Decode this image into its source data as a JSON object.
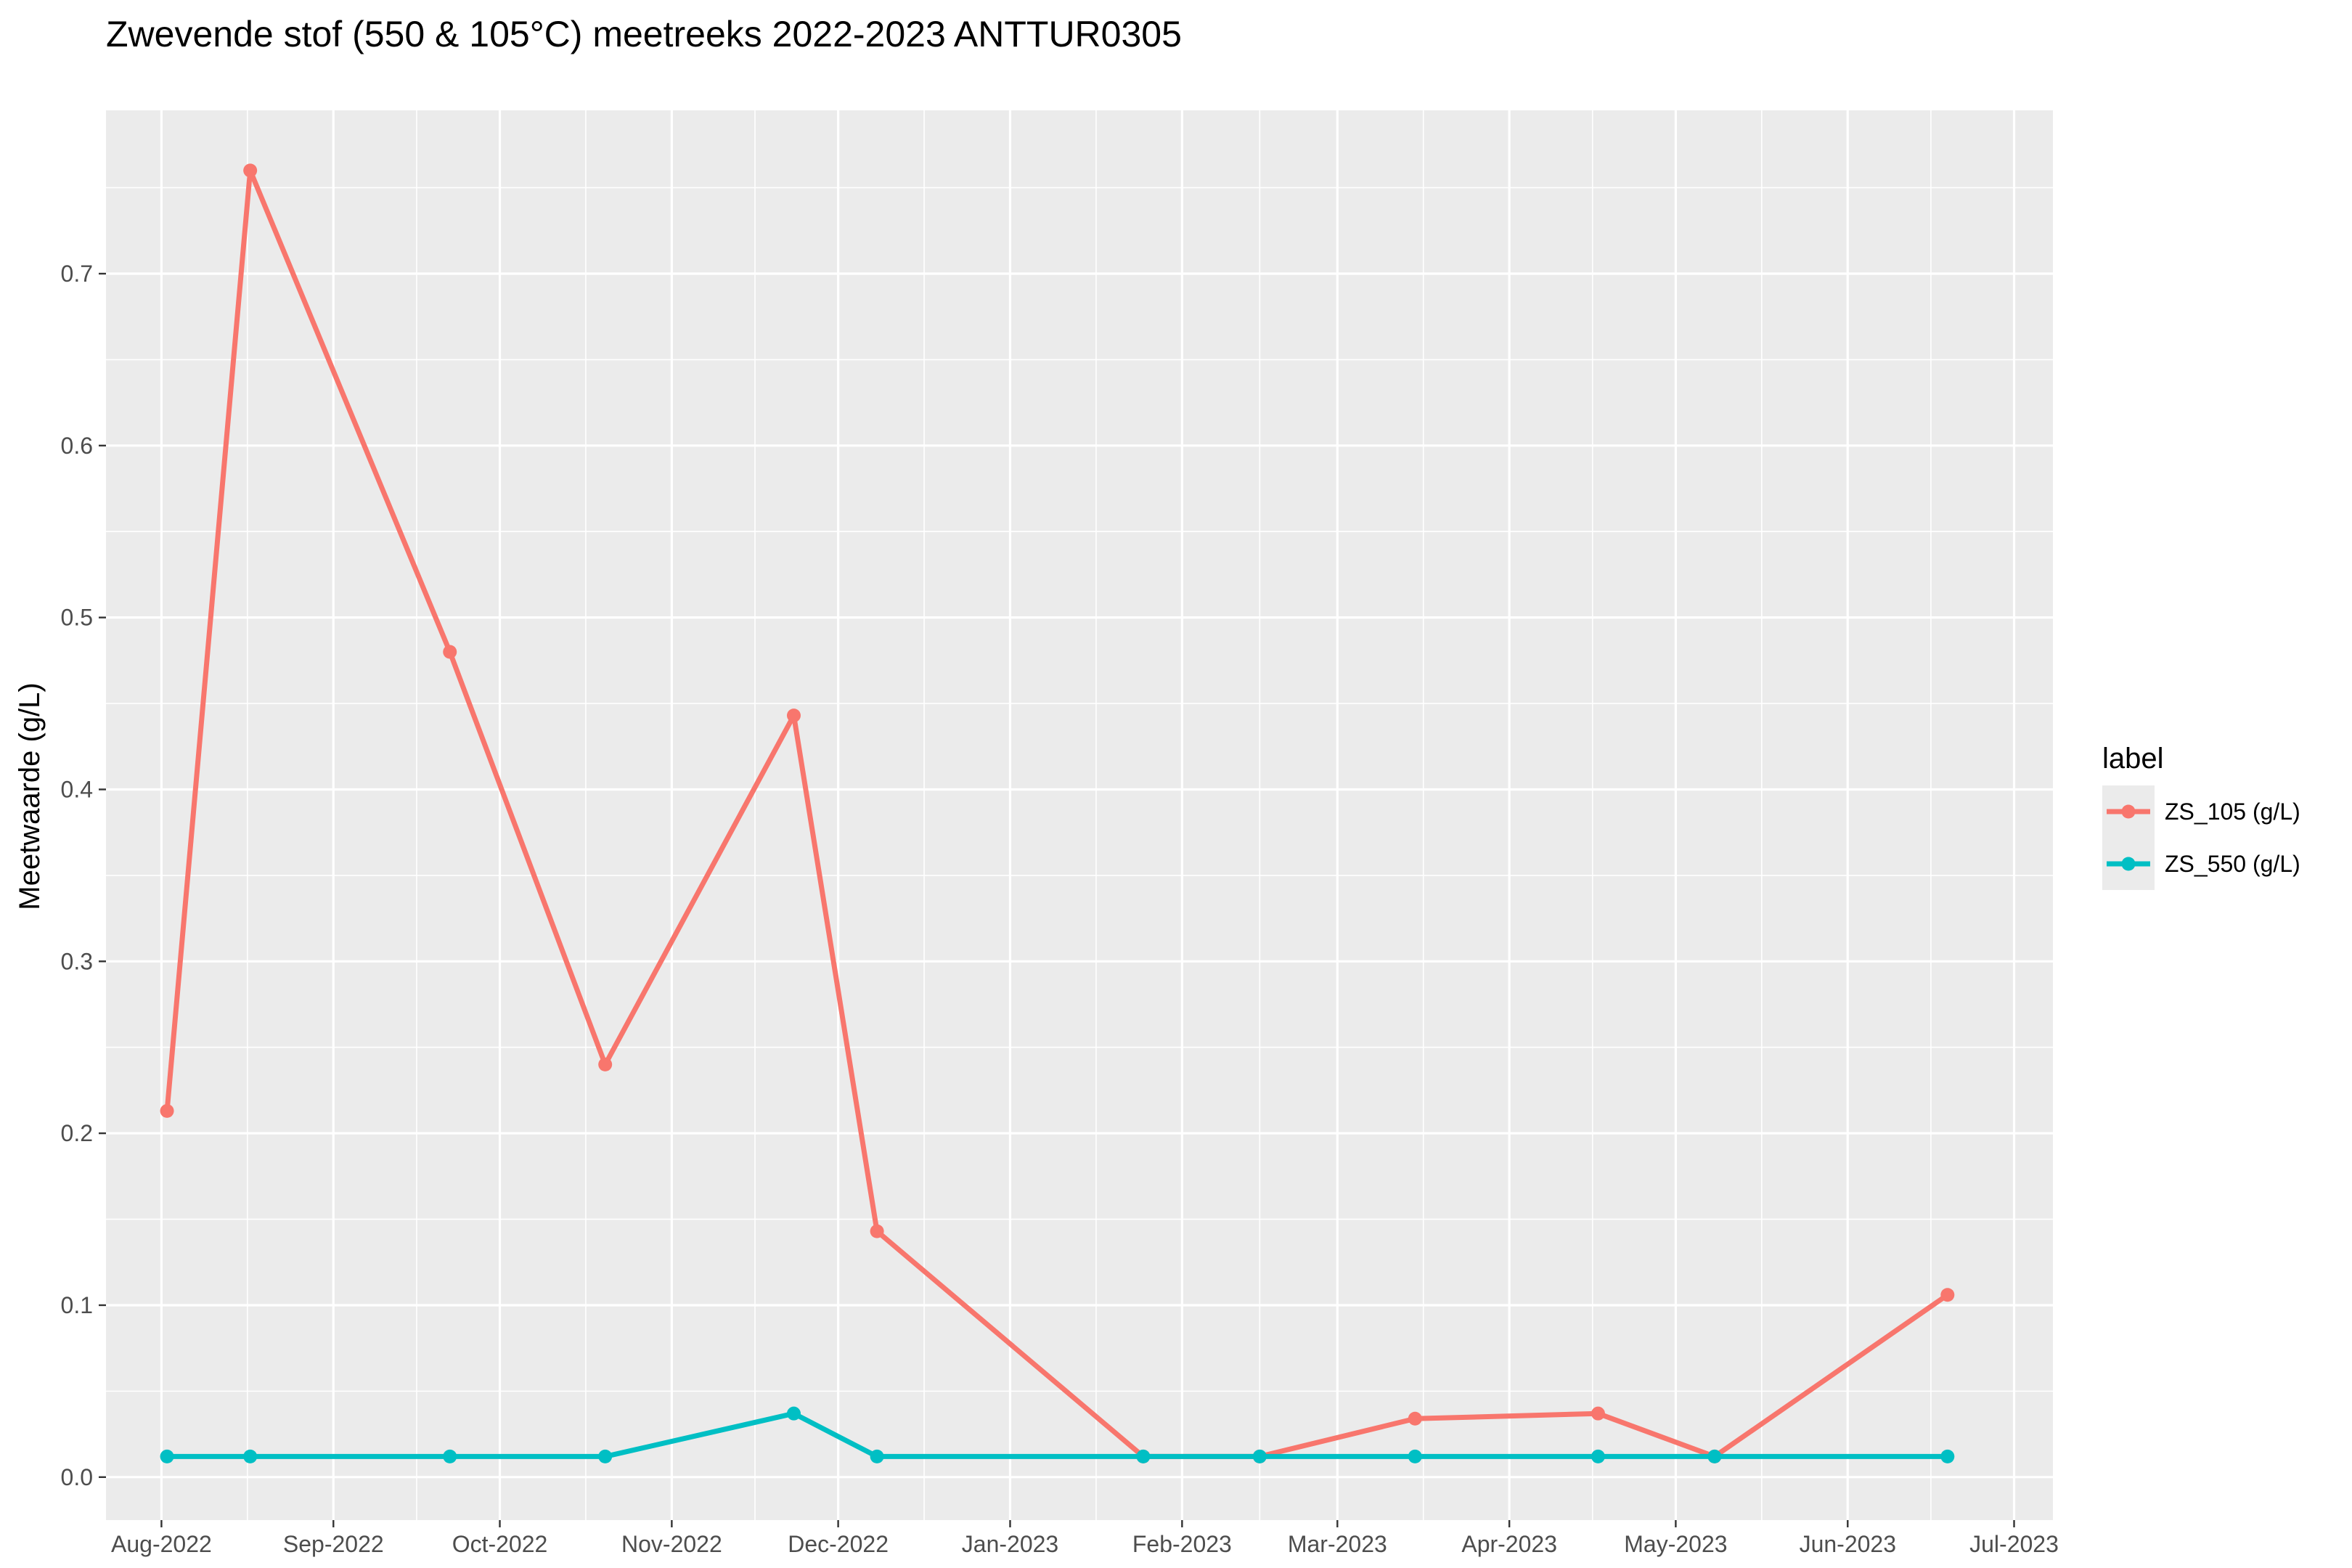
{
  "chart_data": {
    "type": "line",
    "title": "Zwevende stof (550 & 105°C) meetreeks 2022-2023 ANTTUR0305",
    "xlabel": "",
    "ylabel": "Meetwaarde (g/L)",
    "x_type": "date",
    "xlim": [
      "2022-07-22",
      "2023-07-08"
    ],
    "ylim": [
      -0.025,
      0.795
    ],
    "x_ticks": [
      {
        "date": "2022-08-01",
        "label": "Aug-2022"
      },
      {
        "date": "2022-09-01",
        "label": "Sep-2022"
      },
      {
        "date": "2022-10-01",
        "label": "Oct-2022"
      },
      {
        "date": "2022-11-01",
        "label": "Nov-2022"
      },
      {
        "date": "2022-12-01",
        "label": "Dec-2022"
      },
      {
        "date": "2023-01-01",
        "label": "Jan-2023"
      },
      {
        "date": "2023-02-01",
        "label": "Feb-2023"
      },
      {
        "date": "2023-03-01",
        "label": "Mar-2023"
      },
      {
        "date": "2023-04-01",
        "label": "Apr-2023"
      },
      {
        "date": "2023-05-01",
        "label": "May-2023"
      },
      {
        "date": "2023-06-01",
        "label": "Jun-2023"
      },
      {
        "date": "2023-07-01",
        "label": "Jul-2023"
      }
    ],
    "y_ticks": [
      0.0,
      0.1,
      0.2,
      0.3,
      0.4,
      0.5,
      0.6,
      0.7
    ],
    "y_tick_labels": [
      "0.0",
      "0.1",
      "0.2",
      "0.3",
      "0.4",
      "0.5",
      "0.6",
      "0.7"
    ],
    "grid": true,
    "legend": {
      "title": "label",
      "position": "right"
    },
    "series": [
      {
        "name": "ZS_105 (g/L)",
        "color": "#F8766D",
        "points": [
          {
            "x": "2022-08-02",
            "y": 0.213
          },
          {
            "x": "2022-08-17",
            "y": 0.76
          },
          {
            "x": "2022-09-22",
            "y": 0.48
          },
          {
            "x": "2022-10-20",
            "y": 0.24
          },
          {
            "x": "2022-11-23",
            "y": 0.443
          },
          {
            "x": "2022-12-08",
            "y": 0.143
          },
          {
            "x": "2023-01-25",
            "y": 0.012
          },
          {
            "x": "2023-02-15",
            "y": 0.012
          },
          {
            "x": "2023-03-15",
            "y": 0.034
          },
          {
            "x": "2023-04-17",
            "y": 0.037
          },
          {
            "x": "2023-05-08",
            "y": 0.012
          },
          {
            "x": "2023-06-19",
            "y": 0.106
          }
        ]
      },
      {
        "name": "ZS_550 (g/L)",
        "color": "#00BFC4",
        "points": [
          {
            "x": "2022-08-02",
            "y": 0.012
          },
          {
            "x": "2022-08-17",
            "y": 0.012
          },
          {
            "x": "2022-09-22",
            "y": 0.012
          },
          {
            "x": "2022-10-20",
            "y": 0.012
          },
          {
            "x": "2022-11-23",
            "y": 0.037
          },
          {
            "x": "2022-12-08",
            "y": 0.012
          },
          {
            "x": "2023-01-25",
            "y": 0.012
          },
          {
            "x": "2023-02-15",
            "y": 0.012
          },
          {
            "x": "2023-03-15",
            "y": 0.012
          },
          {
            "x": "2023-04-17",
            "y": 0.012
          },
          {
            "x": "2023-05-08",
            "y": 0.012
          },
          {
            "x": "2023-06-19",
            "y": 0.012
          }
        ]
      }
    ]
  }
}
